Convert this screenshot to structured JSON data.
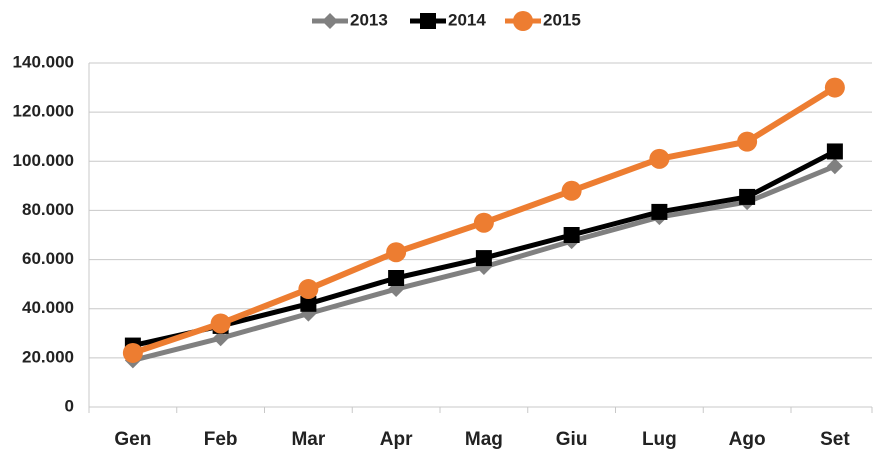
{
  "chart_data": {
    "type": "line",
    "categories": [
      "Gen",
      "Feb",
      "Mar",
      "Apr",
      "Mag",
      "Giu",
      "Lug",
      "Ago",
      "Set"
    ],
    "series": [
      {
        "name": "2013",
        "color": "#808080",
        "marker": "diamond",
        "values": [
          19000,
          28000,
          38000,
          48000,
          57000,
          67500,
          77300,
          83400,
          98000
        ]
      },
      {
        "name": "2014",
        "color": "#000000",
        "marker": "square",
        "values": [
          25000,
          33000,
          42000,
          52500,
          60600,
          70000,
          79400,
          85500,
          104000
        ]
      },
      {
        "name": "2015",
        "color": "#ED7D31",
        "marker": "circle",
        "values": [
          22000,
          34000,
          48000,
          63000,
          75000,
          88000,
          101000,
          108000,
          130000
        ]
      }
    ],
    "ylim": [
      0,
      140000
    ],
    "yticks": [
      0,
      {
        "value": 20000,
        "label": "20.000"
      },
      {
        "value": 40000,
        "label": "40.000"
      },
      {
        "value": 60000,
        "label": "60.000"
      },
      {
        "value": 80000,
        "label": "80.000"
      },
      {
        "value": 100000,
        "label": "100.000"
      },
      {
        "value": 120000,
        "label": "120.000"
      },
      {
        "value": 140000,
        "label": "140.000"
      }
    ],
    "grid": true,
    "legend": "top"
  }
}
